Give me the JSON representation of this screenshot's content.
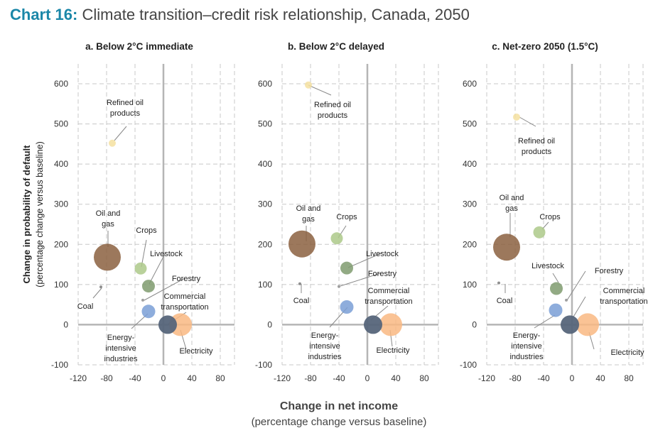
{
  "title": {
    "prefix": "Chart 16:",
    "text": "Climate transition–credit risk relationship, Canada, 2050"
  },
  "colors": {
    "refined_oil": "#f5e0a0",
    "oil_gas": "#8b6040",
    "crops": "#adc98a",
    "livestock": "#7f9b6e",
    "forestry": "#9a9a9a",
    "coal": "#888888",
    "energy_intensive": "#7a9fd6",
    "commercial_transport": "#56657a",
    "electricity": "#f9b883",
    "grid": "#c8c8c8",
    "axis": "#b5b5b5",
    "title_accent": "#1b87a8"
  },
  "xlabel": "Change in net income",
  "xlabel_sub": "(percentage change versus baseline)",
  "ylabel": "Change in probability of default",
  "ylabel_sub": "(percentage change versus baseline)",
  "chart_data": [
    {
      "type": "scatter",
      "title": "a. Below 2°C immediate",
      "xlim": [
        -120,
        100
      ],
      "ylim": [
        -100,
        650
      ],
      "xticks": [
        "-120",
        "-80",
        "-40",
        "0",
        "40",
        "80"
      ],
      "yticks": [
        "600",
        "500",
        "400",
        "300",
        "200",
        "100",
        "0",
        "-100"
      ],
      "points": [
        {
          "label": "Refined oil products",
          "x": -72,
          "y": 452,
          "size": 10
        },
        {
          "label": "Oil and gas",
          "x": -79,
          "y": 168,
          "size": 38
        },
        {
          "label": "Crops",
          "x": -32,
          "y": 140,
          "size": 17
        },
        {
          "label": "Livestock",
          "x": -21,
          "y": 96,
          "size": 18
        },
        {
          "label": "Forestry",
          "x": -29,
          "y": 61,
          "size": 4
        },
        {
          "label": "Coal",
          "x": -88,
          "y": 94,
          "size": 4
        },
        {
          "label": "Energy-intensive industries",
          "x": -21,
          "y": 33,
          "size": 19
        },
        {
          "label": "Commercial transportation",
          "x": 6,
          "y": 0,
          "size": 26
        },
        {
          "label": "Electricity",
          "x": 24,
          "y": 0,
          "size": 32
        }
      ]
    },
    {
      "type": "scatter",
      "title": "b. Below 2°C delayed",
      "xlim": [
        -120,
        100
      ],
      "ylim": [
        -100,
        650
      ],
      "xticks": [
        "-120",
        "-80",
        "-40",
        "0",
        "40",
        "80"
      ],
      "yticks": [
        "600",
        "500",
        "400",
        "300",
        "200",
        "100",
        "0",
        "-100"
      ],
      "points": [
        {
          "label": "Refined oil products",
          "x": -83,
          "y": 597,
          "size": 10
        },
        {
          "label": "Oil and gas",
          "x": -92,
          "y": 201,
          "size": 38
        },
        {
          "label": "Crops",
          "x": -43,
          "y": 215,
          "size": 17
        },
        {
          "label": "Livestock",
          "x": -29,
          "y": 141,
          "size": 18
        },
        {
          "label": "Forestry",
          "x": -40,
          "y": 95,
          "size": 4
        },
        {
          "label": "Coal",
          "x": -95,
          "y": 102,
          "size": 4
        },
        {
          "label": "Energy-intensive industries",
          "x": -29,
          "y": 44,
          "size": 19
        },
        {
          "label": "Commercial transportation",
          "x": 8,
          "y": 0,
          "size": 26
        },
        {
          "label": "Electricity",
          "x": 33,
          "y": 0,
          "size": 32
        }
      ]
    },
    {
      "type": "scatter",
      "title": "c. Net-zero 2050 (1.5°C)",
      "xlim": [
        -120,
        100
      ],
      "ylim": [
        -100,
        650
      ],
      "xticks": [
        "-120",
        "-80",
        "-40",
        "0",
        "40",
        "80"
      ],
      "yticks": [
        "600",
        "500",
        "400",
        "300",
        "200",
        "100",
        "0",
        "-100"
      ],
      "points": [
        {
          "label": "Refined oil products",
          "x": -78,
          "y": 517,
          "size": 10
        },
        {
          "label": "Oil and gas",
          "x": -92,
          "y": 193,
          "size": 38
        },
        {
          "label": "Crops",
          "x": -46,
          "y": 230,
          "size": 17
        },
        {
          "label": "Livestock",
          "x": -22,
          "y": 90,
          "size": 18
        },
        {
          "label": "Forestry",
          "x": -8,
          "y": 61,
          "size": 4
        },
        {
          "label": "Coal",
          "x": -103,
          "y": 104,
          "size": 4
        },
        {
          "label": "Energy-intensive industries",
          "x": -23,
          "y": 36,
          "size": 19
        },
        {
          "label": "Commercial transportation",
          "x": -3,
          "y": 0,
          "size": 26
        },
        {
          "label": "Electricity",
          "x": 22,
          "y": 0,
          "size": 32
        }
      ]
    }
  ]
}
